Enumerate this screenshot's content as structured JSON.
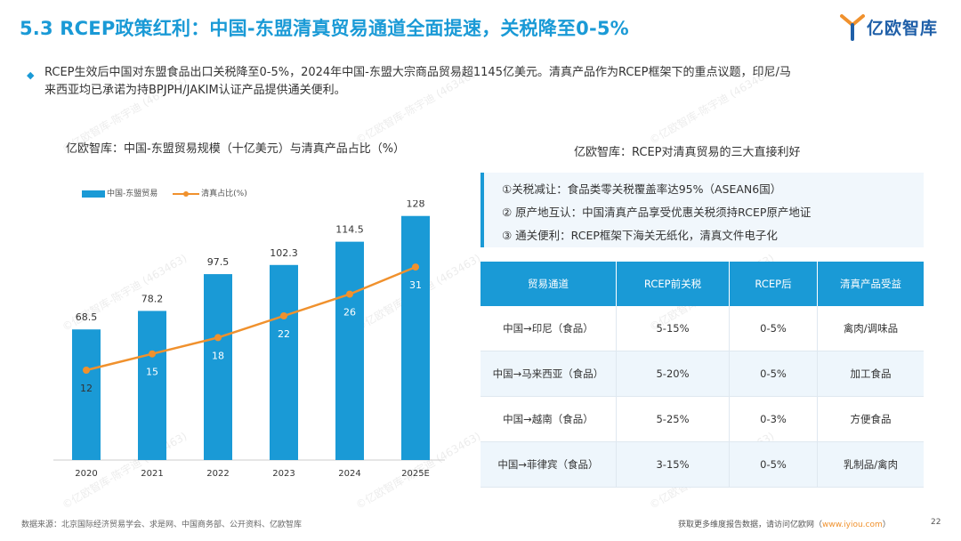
{
  "header": {
    "title": "5.3 RCEP政策红利：中国-东盟清真贸易通道全面提速，关税降至0-5%",
    "logo_text": "亿欧智库"
  },
  "summary": {
    "line1": "RCEP生效后中国对东盟食品出口关税降至0-5%，2024年中国-东盟大宗商品贸易超1145亿美元。清真产品作为RCEP框架下的重点议题，印尼/马",
    "line2": "来西亚均已承诺为持BPJPH/JAKIM认证产品提供通关便利。"
  },
  "chart_data": {
    "type": "bar",
    "title": "亿欧智库：中国-东盟贸易规模（十亿美元）与清真产品占比（%）",
    "categories": [
      "2020",
      "2021",
      "2022",
      "2023",
      "2024",
      "2025E"
    ],
    "series": [
      {
        "name": "中国-东盟贸易",
        "type": "bar",
        "values": [
          68.5,
          78.2,
          97.5,
          102.3,
          114.5,
          128
        ]
      },
      {
        "name": "清真占比(%)",
        "type": "line",
        "values": [
          12,
          15,
          18,
          22,
          26,
          31
        ]
      }
    ],
    "bar_labels": [
      "68.5",
      "78.2",
      "97.5",
      "102.3",
      "114.5",
      "128"
    ],
    "line_labels": [
      "12",
      "15",
      "18",
      "22",
      "26",
      "31"
    ],
    "legend": {
      "position": "top-left"
    },
    "colors": {
      "bar": "#1a9ad6",
      "line": "#f0912d"
    }
  },
  "benefits": {
    "title": "亿欧智库：RCEP对清真贸易的三大直接利好",
    "items": [
      "①关税减让：食品类零关税覆盖率达95%（ASEAN6国）",
      "② 原产地互认：中国清真产品享受优惠关税须持RCEP原产地证",
      "③ 通关便利：RCEP框架下海关无纸化，清真文件电子化"
    ]
  },
  "table": {
    "headers": [
      "贸易通道",
      "RCEP前关税",
      "RCEP后",
      "清真产品受益"
    ],
    "rows": [
      [
        "中国→印尼（食品）",
        "5-15%",
        "0-5%",
        "禽肉/调味品"
      ],
      [
        "中国→马来西亚（食品）",
        "5-20%",
        "0-5%",
        "加工食品"
      ],
      [
        "中国→越南（食品）",
        "5-25%",
        "0-3%",
        "方便食品"
      ],
      [
        "中国→菲律宾（食品）",
        "3-15%",
        "0-5%",
        "乳制品/禽肉"
      ]
    ]
  },
  "footer": {
    "source": "数据来源：北京国际经济贸易学会、求是网、中国商务部、公开资料、亿欧智库",
    "more_prefix": "获取更多维度报告数据，请访问亿欧网（",
    "link": "www.iyiou.com",
    "more_suffix": "）",
    "page": "22"
  }
}
